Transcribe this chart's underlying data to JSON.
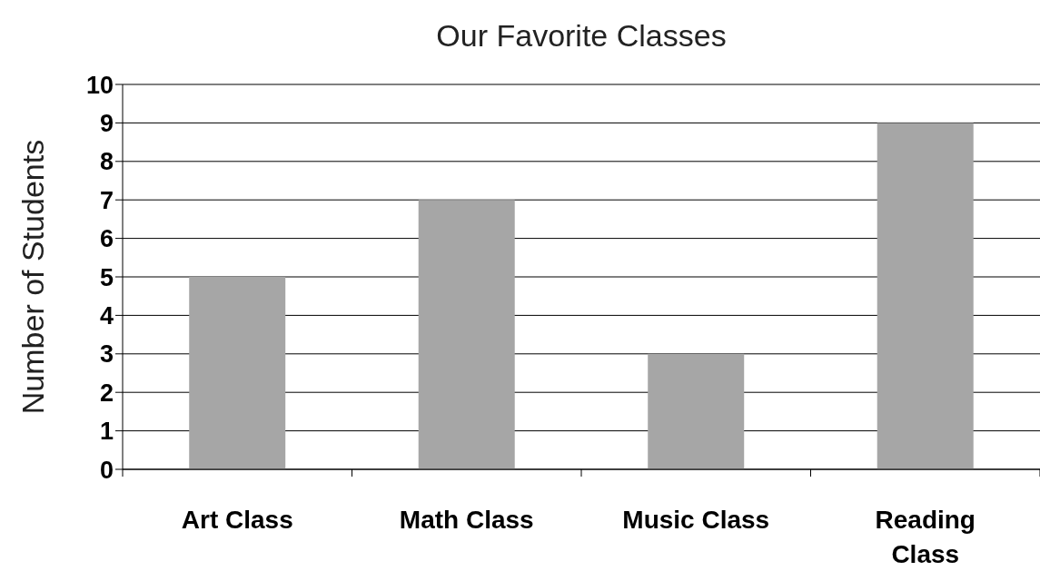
{
  "chart_data": {
    "type": "bar",
    "title": "Our Favorite Classes",
    "ylabel": "Number of Students",
    "categories": [
      "Art Class",
      "Math Class",
      "Music Class",
      "Reading Class"
    ],
    "values": [
      5,
      7,
      3,
      9
    ],
    "color": "#a6a6a6",
    "ylim": [
      0,
      10
    ],
    "yticks": [
      0,
      1,
      2,
      3,
      4,
      5,
      6,
      7,
      8,
      9,
      10
    ],
    "grid": "y"
  }
}
